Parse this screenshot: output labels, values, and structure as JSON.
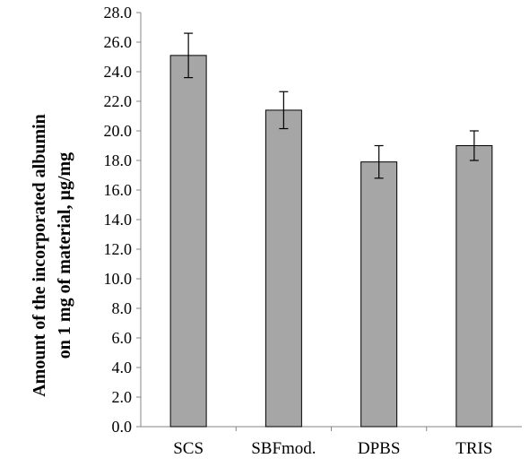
{
  "chart_data": {
    "type": "bar",
    "title": "",
    "xlabel": "",
    "ylabel_line1": "Amount of the incorporated albumin",
    "ylabel_line2": "on 1 mg of material, µg/mg",
    "categories": [
      "SCS",
      "SBFmod.",
      "DPBS",
      "TRIS"
    ],
    "values": [
      25.1,
      21.4,
      17.9,
      19.0
    ],
    "error": [
      1.5,
      1.25,
      1.1,
      1.0
    ],
    "ylim": [
      0,
      28
    ],
    "ytick_step": 2,
    "ytick_labels": [
      "0.0",
      "2.0",
      "4.0",
      "6.0",
      "8.0",
      "10.0",
      "12.0",
      "14.0",
      "16.0",
      "18.0",
      "20.0",
      "22.0",
      "24.0",
      "26.0",
      "28.0"
    ],
    "grid": false,
    "legend": "none",
    "bar_color": "#a6a6a6",
    "bar_edge_color": "#000000"
  }
}
